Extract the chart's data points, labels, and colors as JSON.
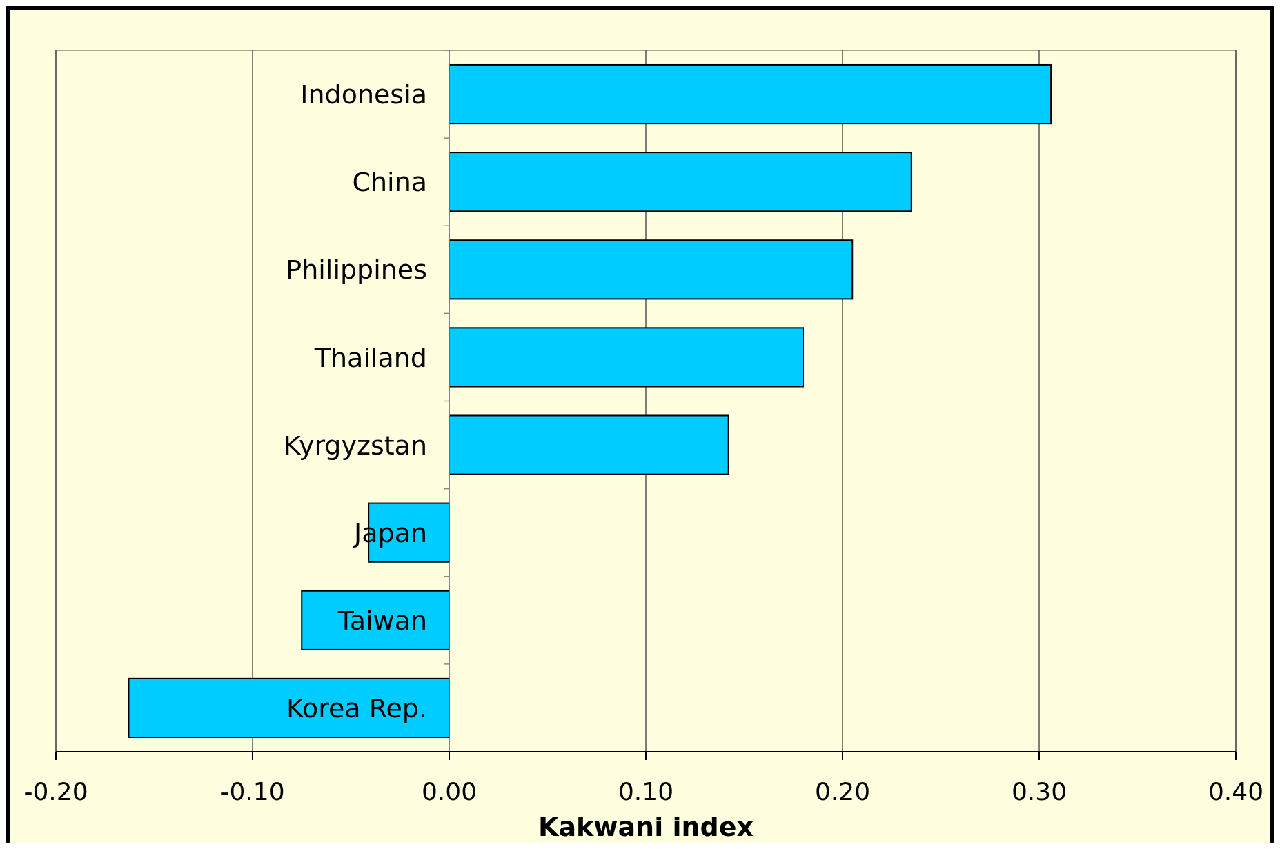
{
  "chart_data": {
    "type": "bar",
    "orientation": "horizontal",
    "xlabel": "Kakwani index",
    "categories": [
      "Indonesia",
      "China",
      "Philippines",
      "Thailand",
      "Kyrgyzstan",
      "Japan",
      "Taiwan",
      "Korea Rep."
    ],
    "values": [
      0.306,
      0.235,
      0.205,
      0.18,
      0.142,
      -0.041,
      -0.075,
      -0.163
    ],
    "color": "#00ccff",
    "xlim": [
      -0.2,
      0.4
    ],
    "xticks": [
      {
        "value": -0.2,
        "label": "-0.20"
      },
      {
        "value": -0.1,
        "label": "-0.10"
      },
      {
        "value": 0,
        "label": "0.00"
      },
      {
        "value": 0.1,
        "label": "0.10"
      },
      {
        "value": 0.2,
        "label": "0.20"
      },
      {
        "value": 0.3,
        "label": "0.30"
      },
      {
        "value": 0.4,
        "label": "0.40"
      }
    ],
    "grid": "x"
  }
}
